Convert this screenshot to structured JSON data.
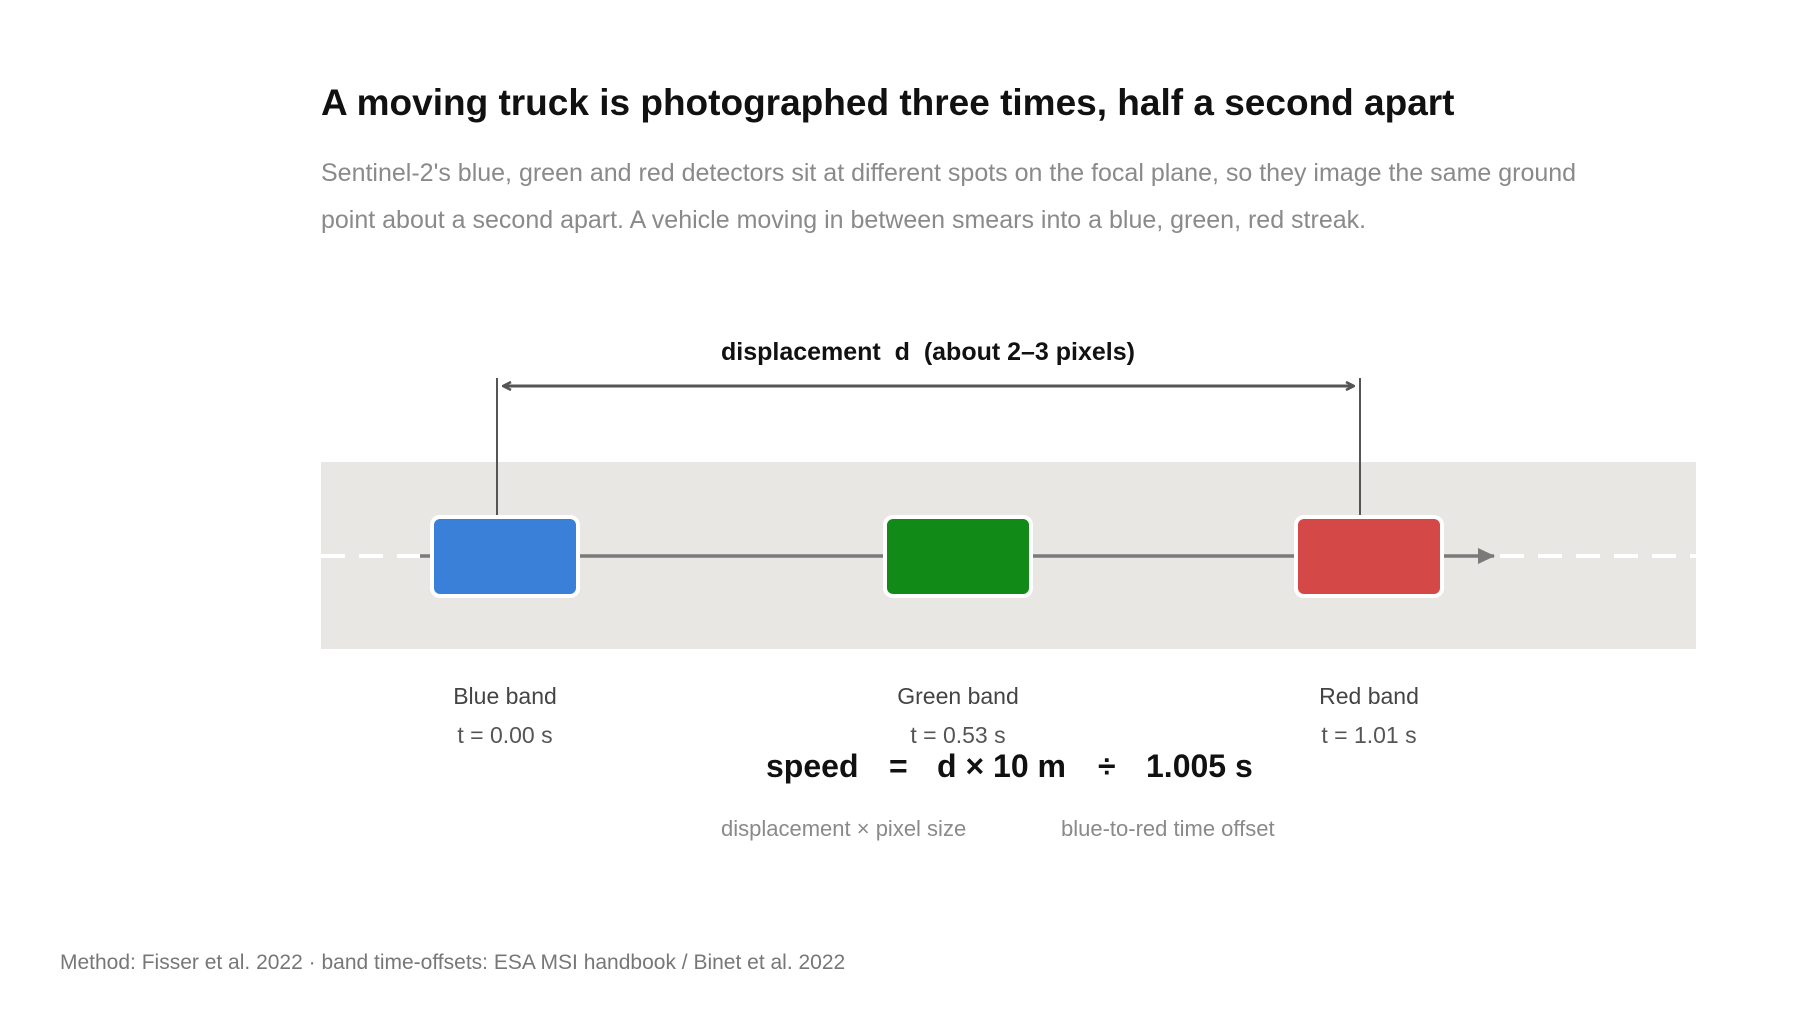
{
  "title": "A moving truck is photographed three times, half a second apart",
  "subtitle": "Sentinel-2's blue, green and red detectors sit at different spots on the focal plane, so they image the same ground point about a second apart. A vehicle moving in between smears into a blue, green, red streak.",
  "displacement_label": "displacement  d  (about 2–3 pixels)",
  "bands": [
    {
      "name": "Blue band",
      "time": "t = 0.00 s",
      "color": "#3a80d9"
    },
    {
      "name": "Green band",
      "time": "t = 0.53 s",
      "color": "#128a17"
    },
    {
      "name": "Red band",
      "time": "t = 1.01 s",
      "color": "#d44848"
    }
  ],
  "formula": {
    "lhs": "speed",
    "equals": "=",
    "numerator": "d × 10 m",
    "divide": "÷",
    "denominator": "1.005 s",
    "numerator_note": "displacement × pixel size",
    "denominator_note": "blue-to-red time offset"
  },
  "source": "Method: Fisser et al. 2022 · band time-offsets: ESA MSI handbook / Binet et al. 2022",
  "colors": {
    "road": "#e8e7e3",
    "track": "#7a7a7a",
    "dimension": "#555555"
  }
}
